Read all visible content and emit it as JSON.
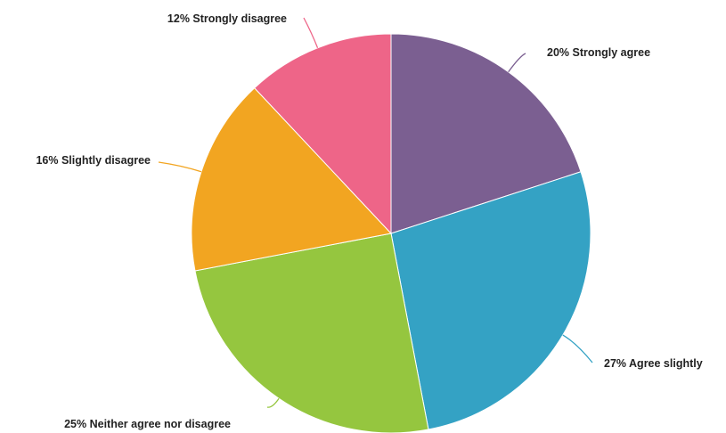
{
  "chart_data": {
    "type": "pie",
    "title": "",
    "labels": [
      "Strongly agree",
      "Agree slightly",
      "Neither agree nor disagree",
      "Slightly disagree",
      "Strongly disagree"
    ],
    "values": [
      20,
      27,
      25,
      16,
      12
    ],
    "value_labels": [
      "20%",
      "27%",
      "25%",
      "16%",
      "12%"
    ],
    "slice_texts": [
      "20% Strongly agree",
      "27% Agree slightly",
      "25% Neither agree nor disagree",
      "16% Slightly disagree",
      "12% Strongly disagree"
    ],
    "colors": [
      "#7b5f91",
      "#34a2c4",
      "#95c63f",
      "#f2a521",
      "#ee6588"
    ],
    "start_angle": "top (12 o'clock)",
    "direction": "clockwise",
    "legend": "none"
  }
}
